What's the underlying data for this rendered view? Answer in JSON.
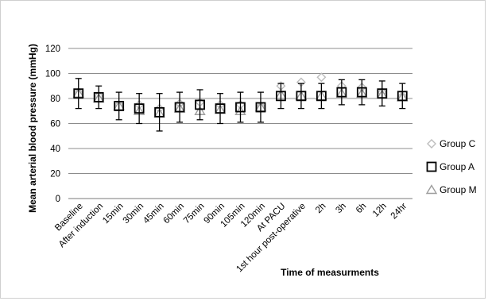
{
  "chart_data": {
    "type": "scatter",
    "ylabel": "Mean arterial blood pressure (mmHg)",
    "xlabel": "Time of measurments",
    "ylim": [
      0,
      120
    ],
    "yticks": [
      0,
      20,
      40,
      60,
      80,
      100,
      120
    ],
    "grid": true,
    "legend_position": "right",
    "categories": [
      "Baseline",
      "After induction",
      "15min",
      "30min",
      "45min",
      "60min",
      "75min",
      "90min",
      "105min",
      "120min",
      "At PACU",
      "1st hour post-operative",
      "2h",
      "3h",
      "6h",
      "12h",
      "24hr"
    ],
    "series": [
      {
        "name": "Group C",
        "marker": "diamond",
        "color": "#bdbdbd",
        "values": [
          85,
          82,
          75,
          75,
          72,
          76,
          77,
          75,
          75,
          74,
          90,
          93,
          97,
          90,
          89,
          85,
          82
        ]
      },
      {
        "name": "Group A",
        "marker": "square",
        "color": "#000000",
        "values": [
          84,
          81,
          74,
          72,
          69,
          73,
          75,
          72,
          73,
          73,
          82,
          82,
          82,
          85,
          85,
          84,
          82
        ],
        "error": [
          12,
          9,
          11,
          12,
          15,
          12,
          12,
          12,
          12,
          12,
          10,
          10,
          10,
          10,
          10,
          10,
          10
        ]
      },
      {
        "name": "Group M",
        "marker": "triangle",
        "color": "#9e9e9e",
        "values": [
          84,
          80,
          74,
          70,
          68,
          72,
          70,
          71,
          70,
          73,
          83,
          82,
          82,
          84,
          84,
          83,
          81
        ]
      }
    ]
  }
}
